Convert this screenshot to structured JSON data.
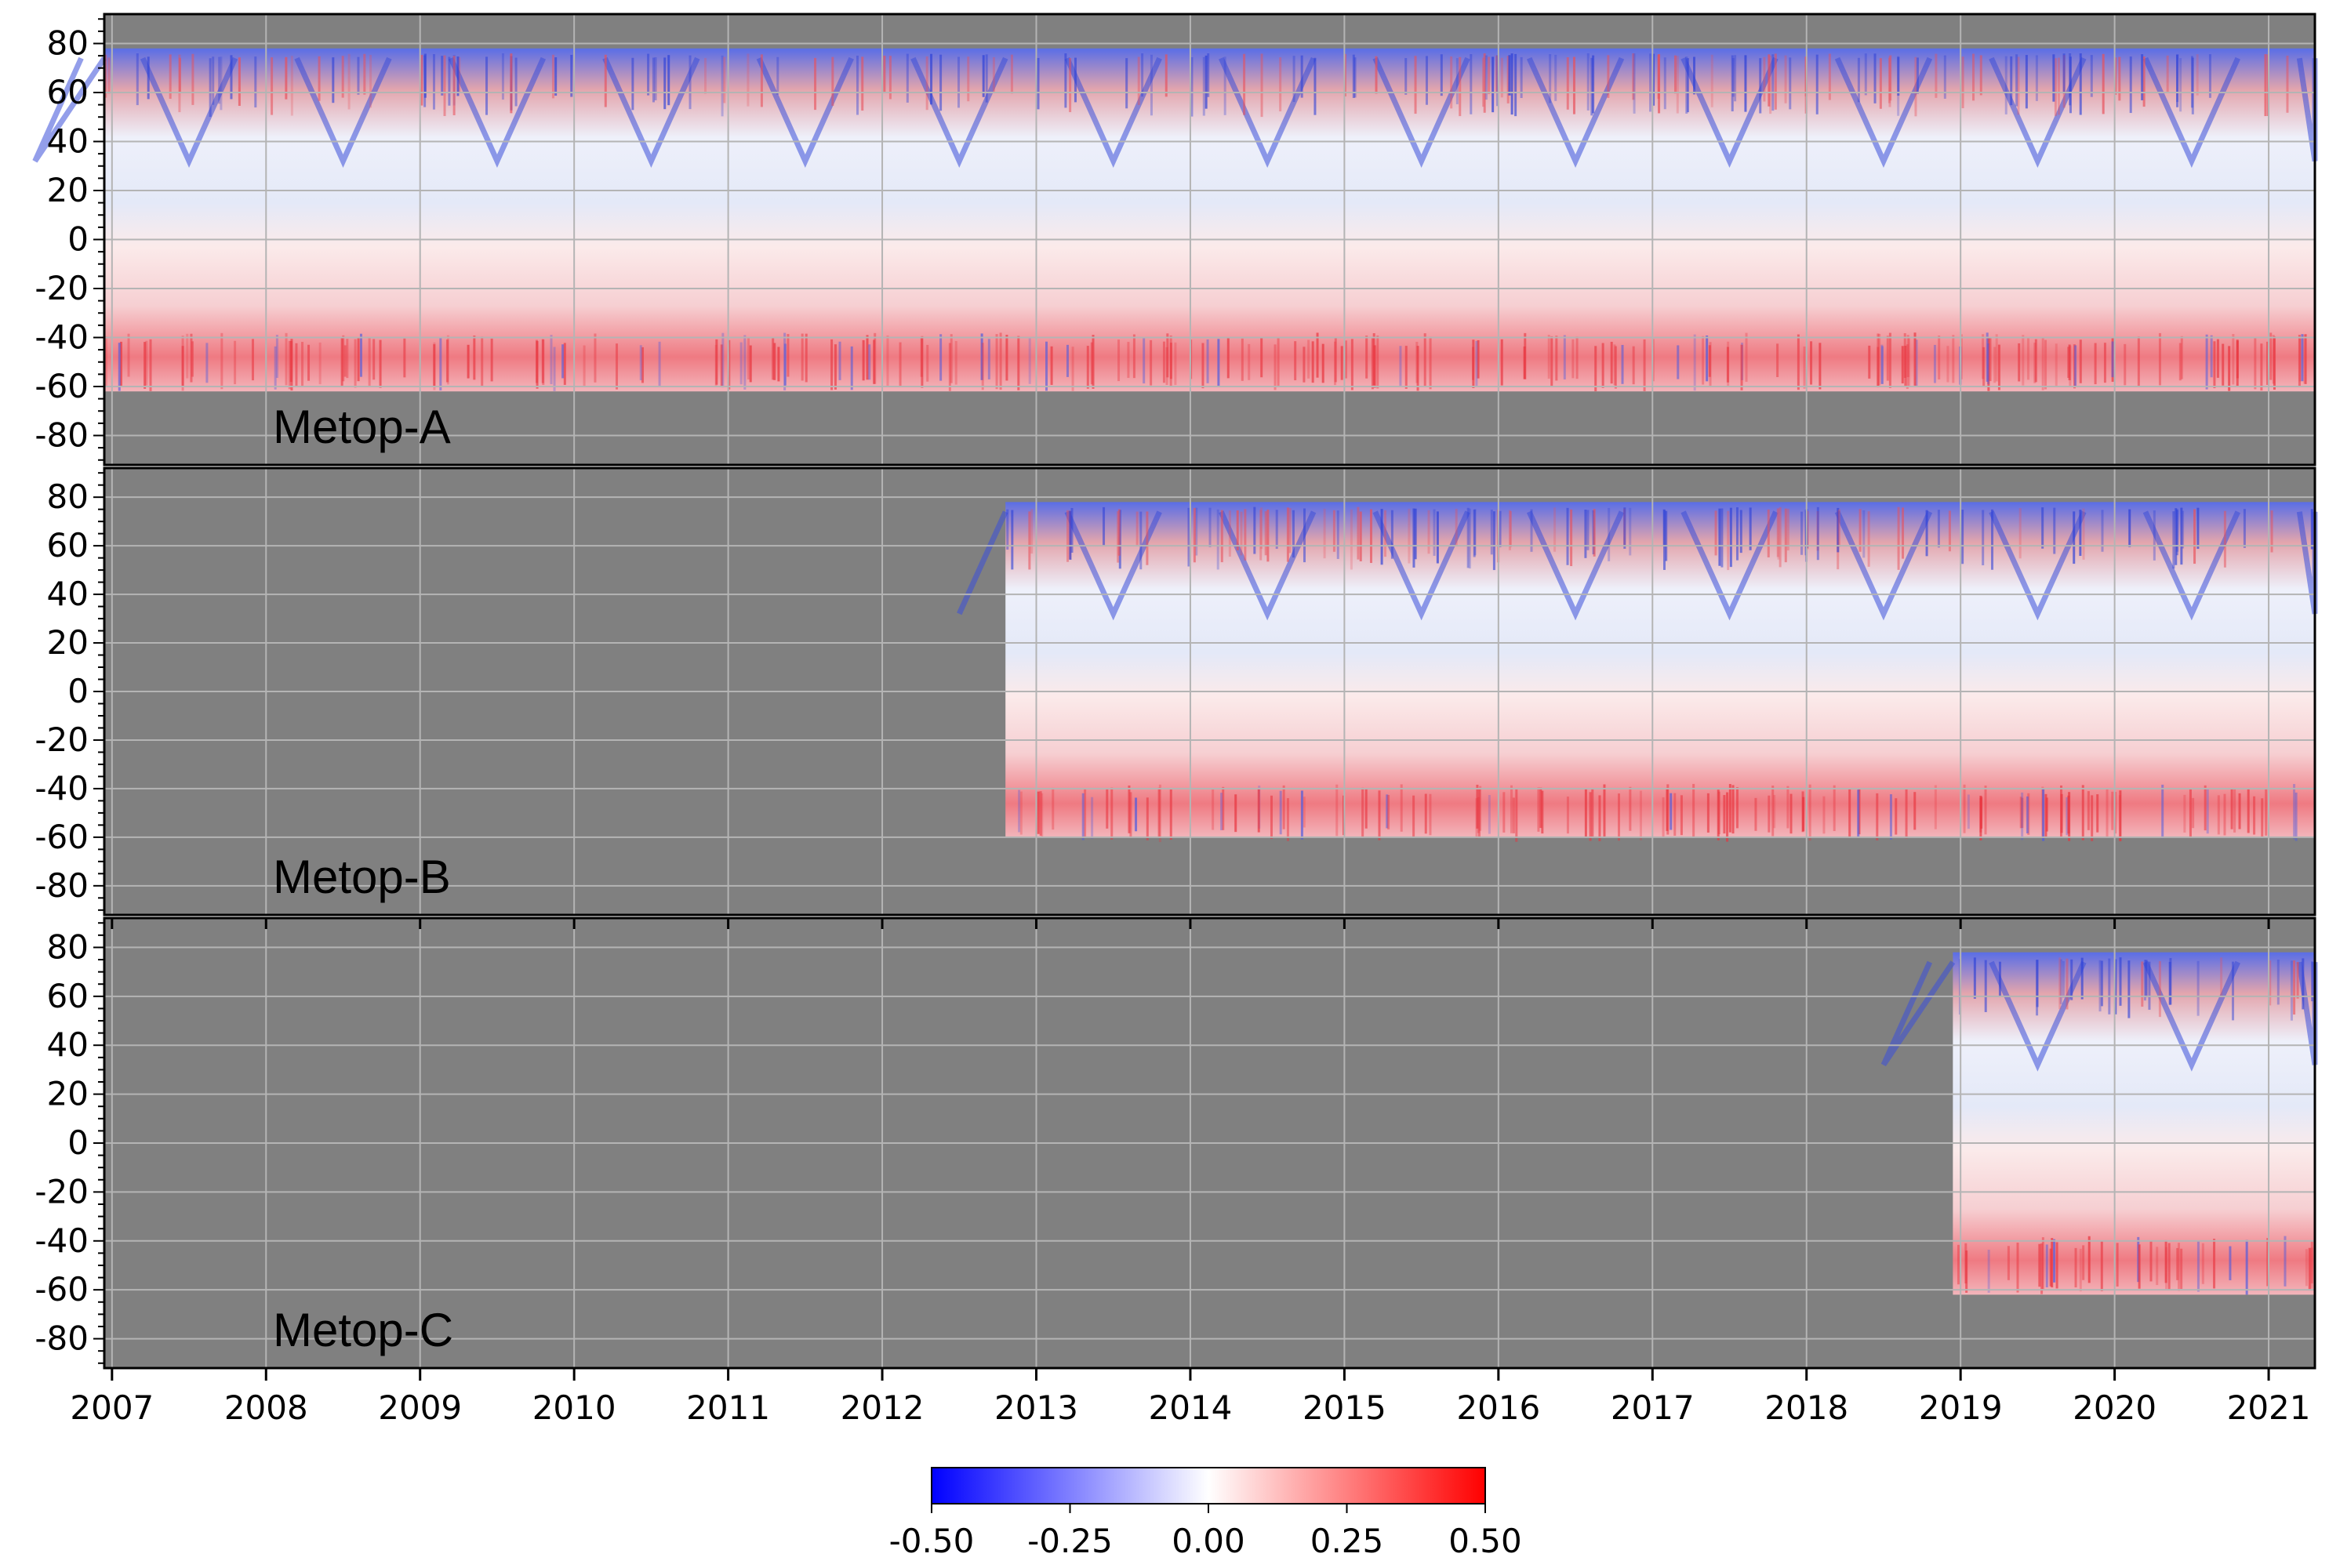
{
  "chart_data": {
    "type": "heatmap",
    "x_ticks": [
      "2007",
      "2008",
      "2009",
      "2010",
      "2011",
      "2012",
      "2013",
      "2014",
      "2015",
      "2016",
      "2017",
      "2018",
      "2019",
      "2020",
      "2021"
    ],
    "x_range": [
      2006.95,
      2021.3
    ],
    "y_ticks": [
      "80",
      "60",
      "40",
      "20",
      "0",
      "-20",
      "-40",
      "-60",
      "-80"
    ],
    "y_tick_values": [
      80,
      60,
      40,
      20,
      0,
      -20,
      -40,
      -60,
      -80
    ],
    "y_range": [
      -92,
      92
    ],
    "grid": true,
    "missing_color": "#808080",
    "panels": [
      {
        "label": "Metop-A",
        "data_start": 2006.95,
        "data_end": 2021.3,
        "lat_north": 78,
        "lat_south": -62
      },
      {
        "label": "Metop-B",
        "data_start": 2012.8,
        "data_end": 2021.3,
        "lat_north": 78,
        "lat_south": -60
      },
      {
        "label": "Metop-C",
        "data_start": 2018.95,
        "data_end": 2021.3,
        "lat_north": 78,
        "lat_south": -62
      }
    ],
    "colorbar": {
      "colormap": "bwr",
      "min": -0.5,
      "max": 0.5,
      "ticks": [
        "-0.50",
        "-0.25",
        "0.00",
        "0.25",
        "0.50"
      ],
      "colors": {
        "low": "#0000ff",
        "mid": "#ffffff",
        "high": "#ff0000"
      }
    }
  }
}
